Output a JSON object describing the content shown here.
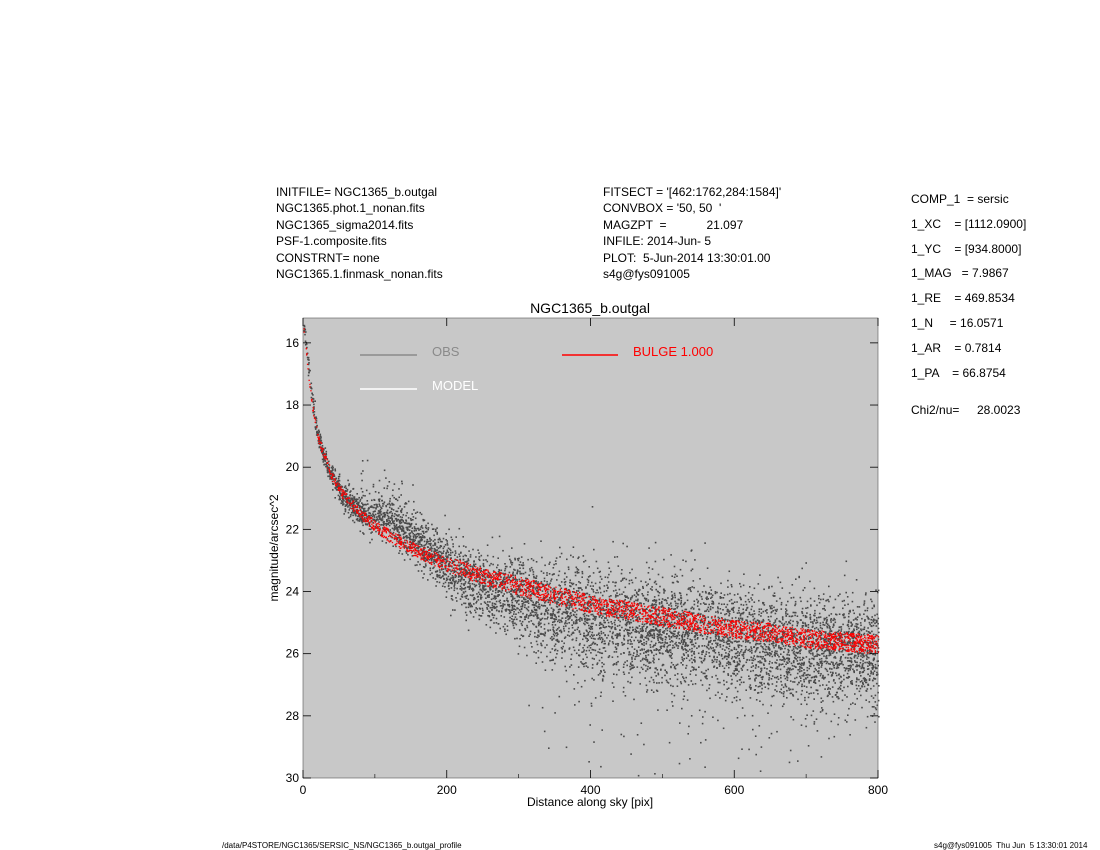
{
  "header_left": [
    "INITFILE= NGC1365_b.outgal",
    "NGC1365.phot.1_nonan.fits",
    "NGC1365_sigma2014.fits",
    "PSF-1.composite.fits",
    "CONSTRNT= none",
    "NGC1365.1.finmask_nonan.fits"
  ],
  "header_middle": [
    "FITSECT = '[462:1762,284:1584]'",
    "CONVBOX = '50, 50  '",
    "MAGZPT  =            21.097",
    "INFILE: 2014-Jun- 5",
    "PLOT:  5-Jun-2014 13:30:01.00",
    "s4g@fys091005"
  ],
  "components": [
    "COMP_1  = sersic",
    "1_XC    = [1112.0900]",
    "1_YC    = [934.8000]",
    "1_MAG   = 7.9867",
    "1_RE    = 469.8534",
    "1_N     = 16.0571",
    "1_AR    = 0.7814",
    "1_PA    = 66.8754"
  ],
  "chi2_label": "Chi2/nu=",
  "chi2_value": "28.0023",
  "footer_left": "/data/P4STORE/NGC1365/SERSIC_NS/NGC1365_b.outgal_profile",
  "footer_right": "s4g@fys091005  Thu Jun  5 13:30:01 2014",
  "colors": {
    "panel_bg": "#c8c8c8",
    "obs": "#4a4a4a",
    "obs_legend": "#8a8a8a",
    "model": "#ffffff",
    "bulge": "#ff0000"
  },
  "chart_data": {
    "type": "scatter",
    "title": "NGC1365_b.outgal",
    "xlabel": "Distance along sky [pix]",
    "ylabel": "magnitude/arcsec^2",
    "xlim": [
      0,
      800
    ],
    "ylim": [
      30,
      15.2
    ],
    "y_inverted": true,
    "xticks": [
      0,
      200,
      400,
      600,
      800
    ],
    "yticks": [
      16,
      18,
      20,
      22,
      24,
      26,
      28,
      30
    ],
    "legend": [
      {
        "name": "OBS",
        "color": "#8a8a8a"
      },
      {
        "name": "MODEL",
        "color": "#ffffff"
      },
      {
        "name": "BULGE  1.000",
        "color": "#ff0000"
      }
    ],
    "series": [
      {
        "name": "OBS",
        "style": "dense scatter of pixels",
        "x": [
          2,
          5,
          10,
          15,
          20,
          30,
          40,
          50,
          60,
          80,
          100,
          120,
          150,
          200,
          250,
          300,
          350,
          400,
          450,
          500,
          550,
          600,
          650,
          700,
          750,
          800
        ],
        "y": [
          15.6,
          16.4,
          17.4,
          18.3,
          19.0,
          19.8,
          20.3,
          20.7,
          21.0,
          21.5,
          21.6,
          21.7,
          22.2,
          23.2,
          23.8,
          24.2,
          24.5,
          24.8,
          25.0,
          25.2,
          25.3,
          25.5,
          25.6,
          25.8,
          25.9,
          26.0
        ]
      },
      {
        "name": "BULGE  1.000",
        "style": "red band (model of sersic bulge)",
        "x": [
          2,
          5,
          10,
          15,
          20,
          30,
          40,
          50,
          60,
          80,
          100,
          120,
          150,
          200,
          250,
          300,
          350,
          400,
          450,
          500,
          550,
          600,
          650,
          700,
          750,
          800
        ],
        "y": [
          15.6,
          16.5,
          17.6,
          18.4,
          19.0,
          19.7,
          20.3,
          20.7,
          21.0,
          21.5,
          21.9,
          22.2,
          22.6,
          23.1,
          23.5,
          23.8,
          24.1,
          24.4,
          24.6,
          24.8,
          25.0,
          25.2,
          25.3,
          25.5,
          25.6,
          25.7
        ]
      }
    ]
  }
}
